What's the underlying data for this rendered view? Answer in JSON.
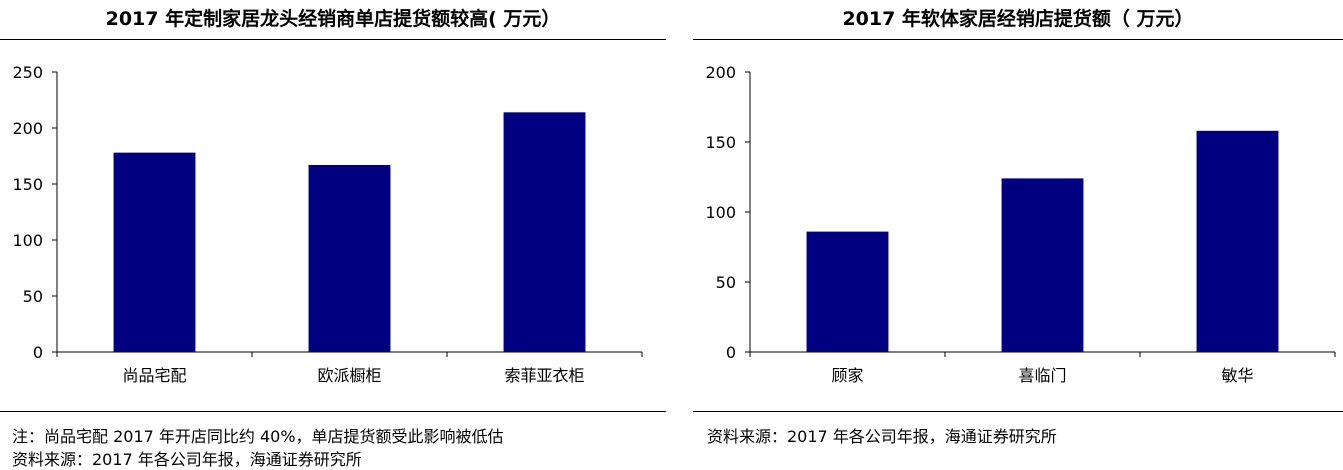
{
  "chart_data": [
    {
      "type": "bar",
      "title": "2017 年定制家居龙头经销商单店提货额较高( 万元）",
      "categories": [
        "尚品宅配",
        "欧派橱柜",
        "索菲亚衣柜"
      ],
      "values": [
        178,
        167,
        214
      ],
      "yticks": [
        0,
        50,
        100,
        150,
        200,
        250
      ],
      "ylim": [
        0,
        250
      ],
      "bar_color": "#000080",
      "grid": false,
      "notes": [
        "注：尚品宅配 2017 年开店同比约 40%，单店提货额受此影响被低估",
        "资料来源：2017 年各公司年报，海通证券研究所"
      ]
    },
    {
      "type": "bar",
      "title": "2017 年软体家居经销店提货额（ 万元）",
      "categories": [
        "顾家",
        "喜临门",
        "敏华"
      ],
      "values": [
        86,
        124,
        158
      ],
      "yticks": [
        0,
        50,
        100,
        150,
        200
      ],
      "ylim": [
        0,
        200
      ],
      "bar_color": "#000080",
      "grid": false,
      "notes": [
        "资料来源：2017 年各公司年报，海通证券研究所"
      ]
    }
  ]
}
